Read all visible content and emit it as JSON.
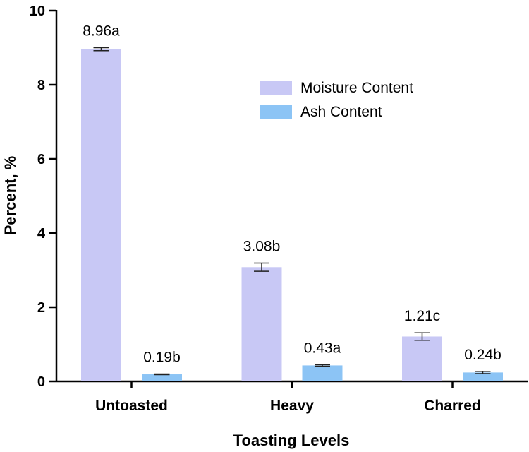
{
  "chart_data": {
    "type": "bar",
    "title": "",
    "xlabel": "Toasting Levels",
    "ylabel": "Percent, %",
    "ylim": [
      0,
      10
    ],
    "yticks": [
      0,
      2,
      4,
      6,
      8,
      10
    ],
    "categories": [
      "Untoasted",
      "Heavy",
      "Charred"
    ],
    "series": [
      {
        "name": "Moisture Content",
        "color": "#c8c8f5",
        "values": [
          8.96,
          3.08,
          1.21
        ],
        "errors": [
          0.04,
          0.11,
          0.1
        ],
        "labels": [
          "8.96a",
          "3.08b",
          "1.21c"
        ]
      },
      {
        "name": "Ash Content",
        "color": "#8cc4f5",
        "values": [
          0.19,
          0.43,
          0.24
        ],
        "errors": [
          0.01,
          0.02,
          0.03
        ],
        "labels": [
          "0.19b",
          "0.43a",
          "0.24b"
        ]
      }
    ],
    "legend_position": "top-right",
    "grid": false
  }
}
